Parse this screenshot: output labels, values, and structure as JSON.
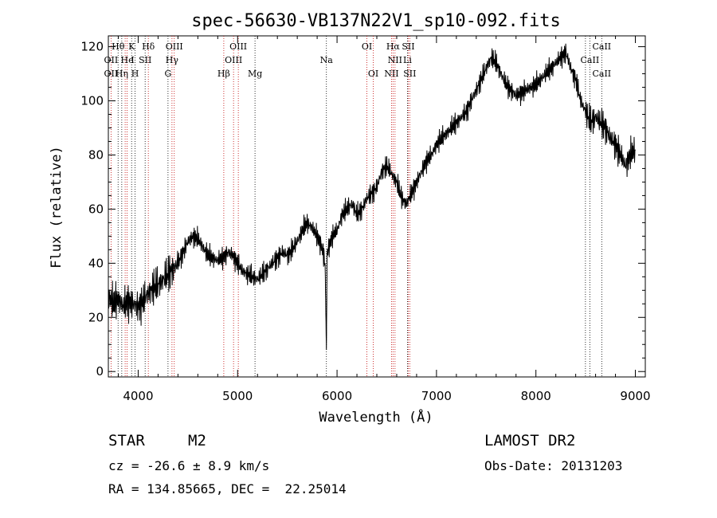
{
  "chart_data": {
    "type": "line",
    "title": "spec-56630-VB137N22V1_sp10-092.fits",
    "xlabel": "Wavelength (Å)",
    "ylabel": "Flux (relative)",
    "xlim": [
      3700,
      9100
    ],
    "ylim": [
      -2,
      124
    ],
    "xticks": [
      4000,
      5000,
      6000,
      7000,
      8000,
      9000
    ],
    "yticks": [
      0,
      20,
      40,
      60,
      80,
      100,
      120
    ],
    "grid": false,
    "series": [
      {
        "x": [
          3700,
          3750,
          3800,
          3850,
          3900,
          3950,
          4000,
          4050,
          4100,
          4150,
          4200,
          4250,
          4300,
          4350,
          4400,
          4450,
          4500,
          4550,
          4600,
          4650,
          4700,
          4750,
          4800,
          4850,
          4900,
          4950,
          5000,
          5050,
          5100,
          5150,
          5200,
          5250,
          5300,
          5350,
          5400,
          5450,
          5500,
          5550,
          5600,
          5650,
          5700,
          5750,
          5800,
          5850,
          5880,
          5893,
          5900,
          5950,
          6000,
          6050,
          6100,
          6150,
          6200,
          6250,
          6300,
          6350,
          6400,
          6450,
          6500,
          6550,
          6600,
          6650,
          6700,
          6750,
          6800,
          6850,
          6900,
          6950,
          7000,
          7050,
          7100,
          7150,
          7200,
          7250,
          7300,
          7350,
          7400,
          7450,
          7500,
          7550,
          7600,
          7650,
          7700,
          7750,
          7800,
          7850,
          7900,
          7950,
          8000,
          8050,
          8100,
          8150,
          8200,
          8250,
          8300,
          8350,
          8400,
          8450,
          8500,
          8550,
          8600,
          8650,
          8700,
          8750,
          8800,
          8850,
          8900,
          8950,
          9000
        ],
        "y": [
          28,
          25,
          27,
          24,
          26,
          25,
          24,
          26,
          29,
          31,
          32,
          34,
          36,
          38,
          40,
          44,
          48,
          50,
          49,
          46,
          43,
          42,
          41,
          42,
          44,
          43,
          40,
          37,
          36,
          35,
          34,
          36,
          38,
          40,
          42,
          44,
          43,
          45,
          48,
          52,
          55,
          53,
          50,
          46,
          40,
          8,
          44,
          50,
          52,
          58,
          60,
          62,
          58,
          60,
          64,
          66,
          68,
          74,
          76,
          73,
          70,
          64,
          62,
          66,
          70,
          74,
          78,
          80,
          84,
          86,
          88,
          90,
          92,
          94,
          96,
          100,
          104,
          108,
          112,
          116,
          114,
          110,
          106,
          104,
          102,
          103,
          104,
          105,
          106,
          108,
          110,
          112,
          114,
          116,
          118,
          112,
          108,
          100,
          96,
          92,
          94,
          92,
          90,
          86,
          84,
          80,
          76,
          80,
          82
        ]
      }
    ],
    "line_labels": [
      {
        "text": "Hθ",
        "wave": 3798,
        "row": 0
      },
      {
        "text": "K",
        "wave": 3934,
        "row": 0
      },
      {
        "text": "Hδ",
        "wave": 4102,
        "row": 0
      },
      {
        "text": "OIII",
        "wave": 4363,
        "row": 0
      },
      {
        "text": "OIII",
        "wave": 5007,
        "row": 0
      },
      {
        "text": "OI",
        "wave": 6300,
        "row": 0
      },
      {
        "text": "Hα",
        "wave": 6563,
        "row": 0
      },
      {
        "text": "SII",
        "wave": 6716,
        "row": 0
      },
      {
        "text": "CaII",
        "wave": 8662,
        "row": 0
      },
      {
        "text": "OII",
        "wave": 3727,
        "row": 1
      },
      {
        "text": "He",
        "wave": 3889,
        "row": 1
      },
      {
        "text": "I",
        "wave": 3945,
        "row": 1
      },
      {
        "text": "SII",
        "wave": 4070,
        "row": 1
      },
      {
        "text": "Hγ",
        "wave": 4340,
        "row": 1
      },
      {
        "text": "OIII",
        "wave": 4959,
        "row": 1
      },
      {
        "text": "Na",
        "wave": 5893,
        "row": 1
      },
      {
        "text": "NII",
        "wave": 6583,
        "row": 1
      },
      {
        "text": "Li",
        "wave": 6708,
        "row": 1
      },
      {
        "text": "CaII",
        "wave": 8542,
        "row": 1
      },
      {
        "text": "OII",
        "wave": 3727,
        "row": 2
      },
      {
        "text": "Hη",
        "wave": 3835,
        "row": 2
      },
      {
        "text": "H",
        "wave": 3969,
        "row": 2
      },
      {
        "text": "G",
        "wave": 4300,
        "row": 2
      },
      {
        "text": "Hβ",
        "wave": 4861,
        "row": 2
      },
      {
        "text": "Mg",
        "wave": 5175,
        "row": 2
      },
      {
        "text": "OI",
        "wave": 6364,
        "row": 2
      },
      {
        "text": "NII",
        "wave": 6548,
        "row": 2
      },
      {
        "text": "SII",
        "wave": 6731,
        "row": 2
      },
      {
        "text": "CaII",
        "wave": 8662,
        "row": 2
      }
    ],
    "emission_lines": [
      3727,
      3869,
      3889,
      4102,
      4340,
      4363,
      4861,
      4959,
      5007,
      6300,
      6364,
      6548,
      6563,
      6583,
      6716,
      6731
    ],
    "absorption_lines": [
      3798,
      3835,
      3934,
      3969,
      4070,
      4300,
      5175,
      5893,
      6708,
      8498,
      8542,
      8662
    ],
    "colors": {
      "emission": "#c00000",
      "absorption": "#000000"
    }
  },
  "info": {
    "class_label": "STAR",
    "subclass": "M2",
    "survey": "LAMOST DR2",
    "cz": "cz = -26.6 ± 8.9 km/s",
    "obs_date": "Obs-Date: 20131203",
    "coords": "RA = 134.85665, DEC =  22.25014"
  }
}
